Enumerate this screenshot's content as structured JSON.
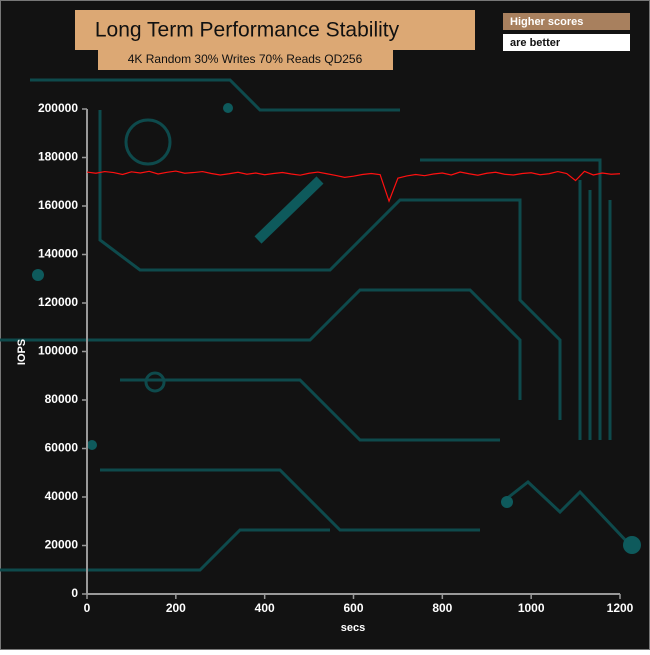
{
  "chart_data": {
    "type": "line",
    "title": "Long Term Performance Stability",
    "subtitle": "4K Random 30% Writes 70% Reads QD256",
    "annotations": [
      "Higher scores",
      "are better"
    ],
    "x_label": "secs",
    "y_label": "IOPS",
    "x": [
      0,
      20,
      40,
      60,
      80,
      100,
      120,
      140,
      160,
      180,
      200,
      220,
      240,
      260,
      280,
      300,
      320,
      340,
      360,
      380,
      400,
      420,
      440,
      460,
      480,
      500,
      520,
      540,
      560,
      580,
      600,
      620,
      640,
      660,
      680,
      700,
      720,
      740,
      760,
      780,
      800,
      820,
      840,
      860,
      880,
      900,
      920,
      940,
      960,
      980,
      1000,
      1020,
      1040,
      1060,
      1080,
      1100,
      1120,
      1140,
      1160,
      1180,
      1200
    ],
    "series": [
      {
        "color": "#ff1010",
        "values": [
          174000,
          173500,
          174200,
          173800,
          173000,
          174100,
          173600,
          174300,
          173200,
          173900,
          174400,
          173500,
          173800,
          174200,
          173400,
          172800,
          173300,
          173900,
          173100,
          173600,
          172900,
          173400,
          173800,
          173200,
          172700,
          173500,
          174000,
          173300,
          172600,
          171800,
          172300,
          173000,
          173400,
          172900,
          162000,
          171500,
          172400,
          173000,
          172500,
          173200,
          173600,
          172800,
          174000,
          173300,
          172700,
          173500,
          173900,
          173100,
          172800,
          173400,
          173700,
          172900,
          173300,
          174200,
          173400,
          170500,
          174300,
          172800,
          173600,
          173100,
          173300
        ]
      }
    ],
    "xlim": [
      0,
      1200
    ],
    "xticks": [
      0,
      200,
      400,
      600,
      800,
      1000,
      1200
    ],
    "ylim": [
      0,
      200000
    ],
    "yticks": [
      0,
      20000,
      40000,
      60000,
      80000,
      100000,
      120000,
      140000,
      160000,
      180000,
      200000
    ]
  }
}
